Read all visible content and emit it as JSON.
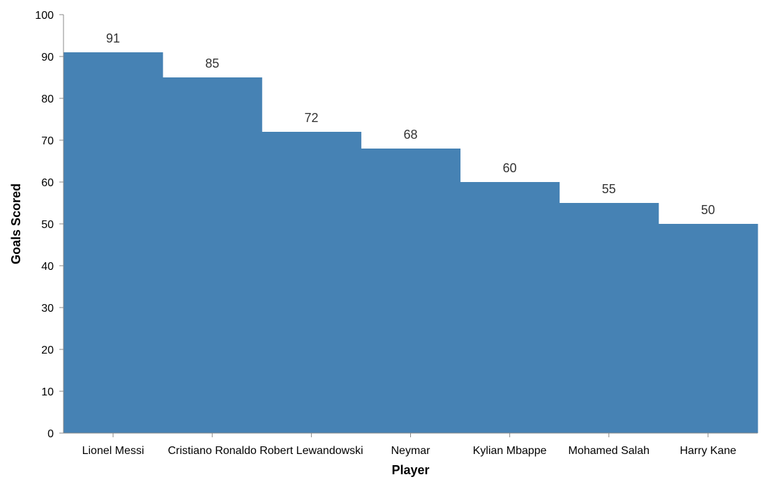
{
  "chart_data": {
    "type": "bar",
    "categories": [
      "Lionel Messi",
      "Cristiano Ronaldo",
      "Robert Lewandowski",
      "Neymar",
      "Kylian Mbappe",
      "Mohamed Salah",
      "Harry Kane"
    ],
    "values": [
      91,
      85,
      72,
      68,
      60,
      55,
      50
    ],
    "xlabel": "Player",
    "ylabel": "Goals Scored",
    "ylim": [
      0,
      100
    ],
    "yticks": [
      0,
      10,
      20,
      30,
      40,
      50,
      60,
      70,
      80,
      90,
      100
    ],
    "bar_color": "#4682b4",
    "data_labels": true,
    "grid": false
  }
}
